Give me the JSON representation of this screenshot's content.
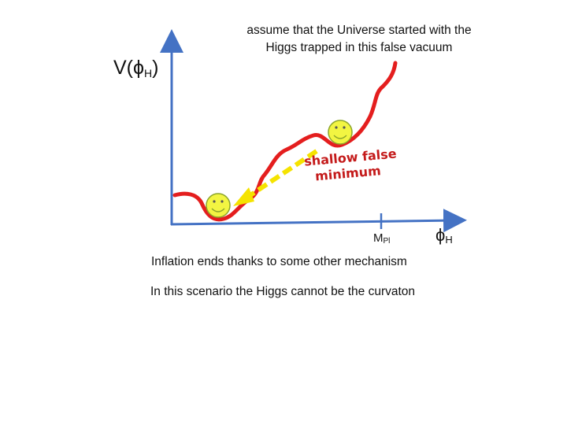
{
  "caption_top": "assume that the Universe started with the Higgs trapped in this false vacuum",
  "axes": {
    "y_label_main": "V(ϕ",
    "y_label_sub": "H",
    "y_label_close": ")",
    "x_label_main": "ϕ",
    "x_label_sub": "H",
    "x_tick_main": "M",
    "x_tick_sub": "Pl"
  },
  "annotation": {
    "line1": "shallow false",
    "line2": "minimum"
  },
  "notes": {
    "line1": "Inflation ends thanks to some other mechanism",
    "line2": "In this scenario the Higgs cannot be the curvaton"
  },
  "colors": {
    "axis": "#4472c4",
    "potential": "#e41e1e",
    "arrow": "#f5e300",
    "ball_fill": "#f2f542",
    "ball_stroke": "#8ca52a",
    "annotation_text": "#c41a1a"
  },
  "icons": {
    "ball_top": "smiley-face-icon",
    "ball_bottom": "smiley-face-icon"
  }
}
